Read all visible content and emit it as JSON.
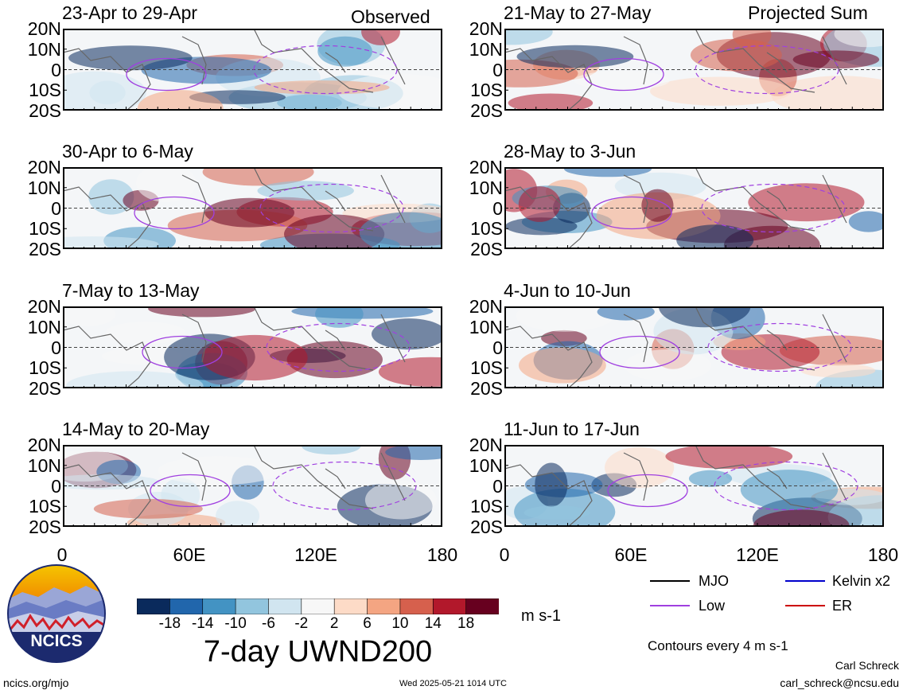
{
  "chart_data": {
    "type": "heatmap",
    "title": "7-day UWND200",
    "units": "m s-1",
    "contour_note": "Contours every 4 m s-1",
    "x_ticks": [
      "0",
      "60E",
      "120E",
      "180"
    ],
    "y_ticks": [
      "20N",
      "10N",
      "0",
      "10S",
      "20S"
    ],
    "xlim": [
      0,
      180
    ],
    "ylim": [
      -20,
      20
    ],
    "colorbar_ticks": [
      "-18",
      "-14",
      "-10",
      "-6",
      "-2",
      "2",
      "6",
      "10",
      "14",
      "18"
    ],
    "colorbar_colors": [
      "#0a2a5c",
      "#2166ac",
      "#4393c3",
      "#92c5de",
      "#d1e5f0",
      "#f7f7f7",
      "#fddbc7",
      "#f4a582",
      "#d6604d",
      "#b2182b",
      "#67001f"
    ],
    "columns": [
      {
        "label": "Observed",
        "panels": [
          "23-Apr to 29-Apr",
          "30-Apr to 6-May",
          "7-May to 13-May",
          "14-May to 20-May"
        ]
      },
      {
        "label": "Projected Sum",
        "panels": [
          "21-May to 27-May",
          "28-May to 3-Jun",
          "4-Jun to 10-Jun",
          "11-Jun to 17-Jun"
        ]
      }
    ],
    "legend": [
      {
        "name": "MJO",
        "color": "#000000"
      },
      {
        "name": "Kelvin x2",
        "color": "#0000cc"
      },
      {
        "name": "Low",
        "color": "#a040e0"
      },
      {
        "name": "ER",
        "color": "#cc0000"
      }
    ]
  },
  "logo_text": "NCICS",
  "footer": {
    "url": "ncics.org/mjo",
    "timestamp": "Wed 2025-05-21 1014 UTC",
    "author": "Carl Schreck",
    "email": "carl_schreck@ncsu.edu"
  }
}
